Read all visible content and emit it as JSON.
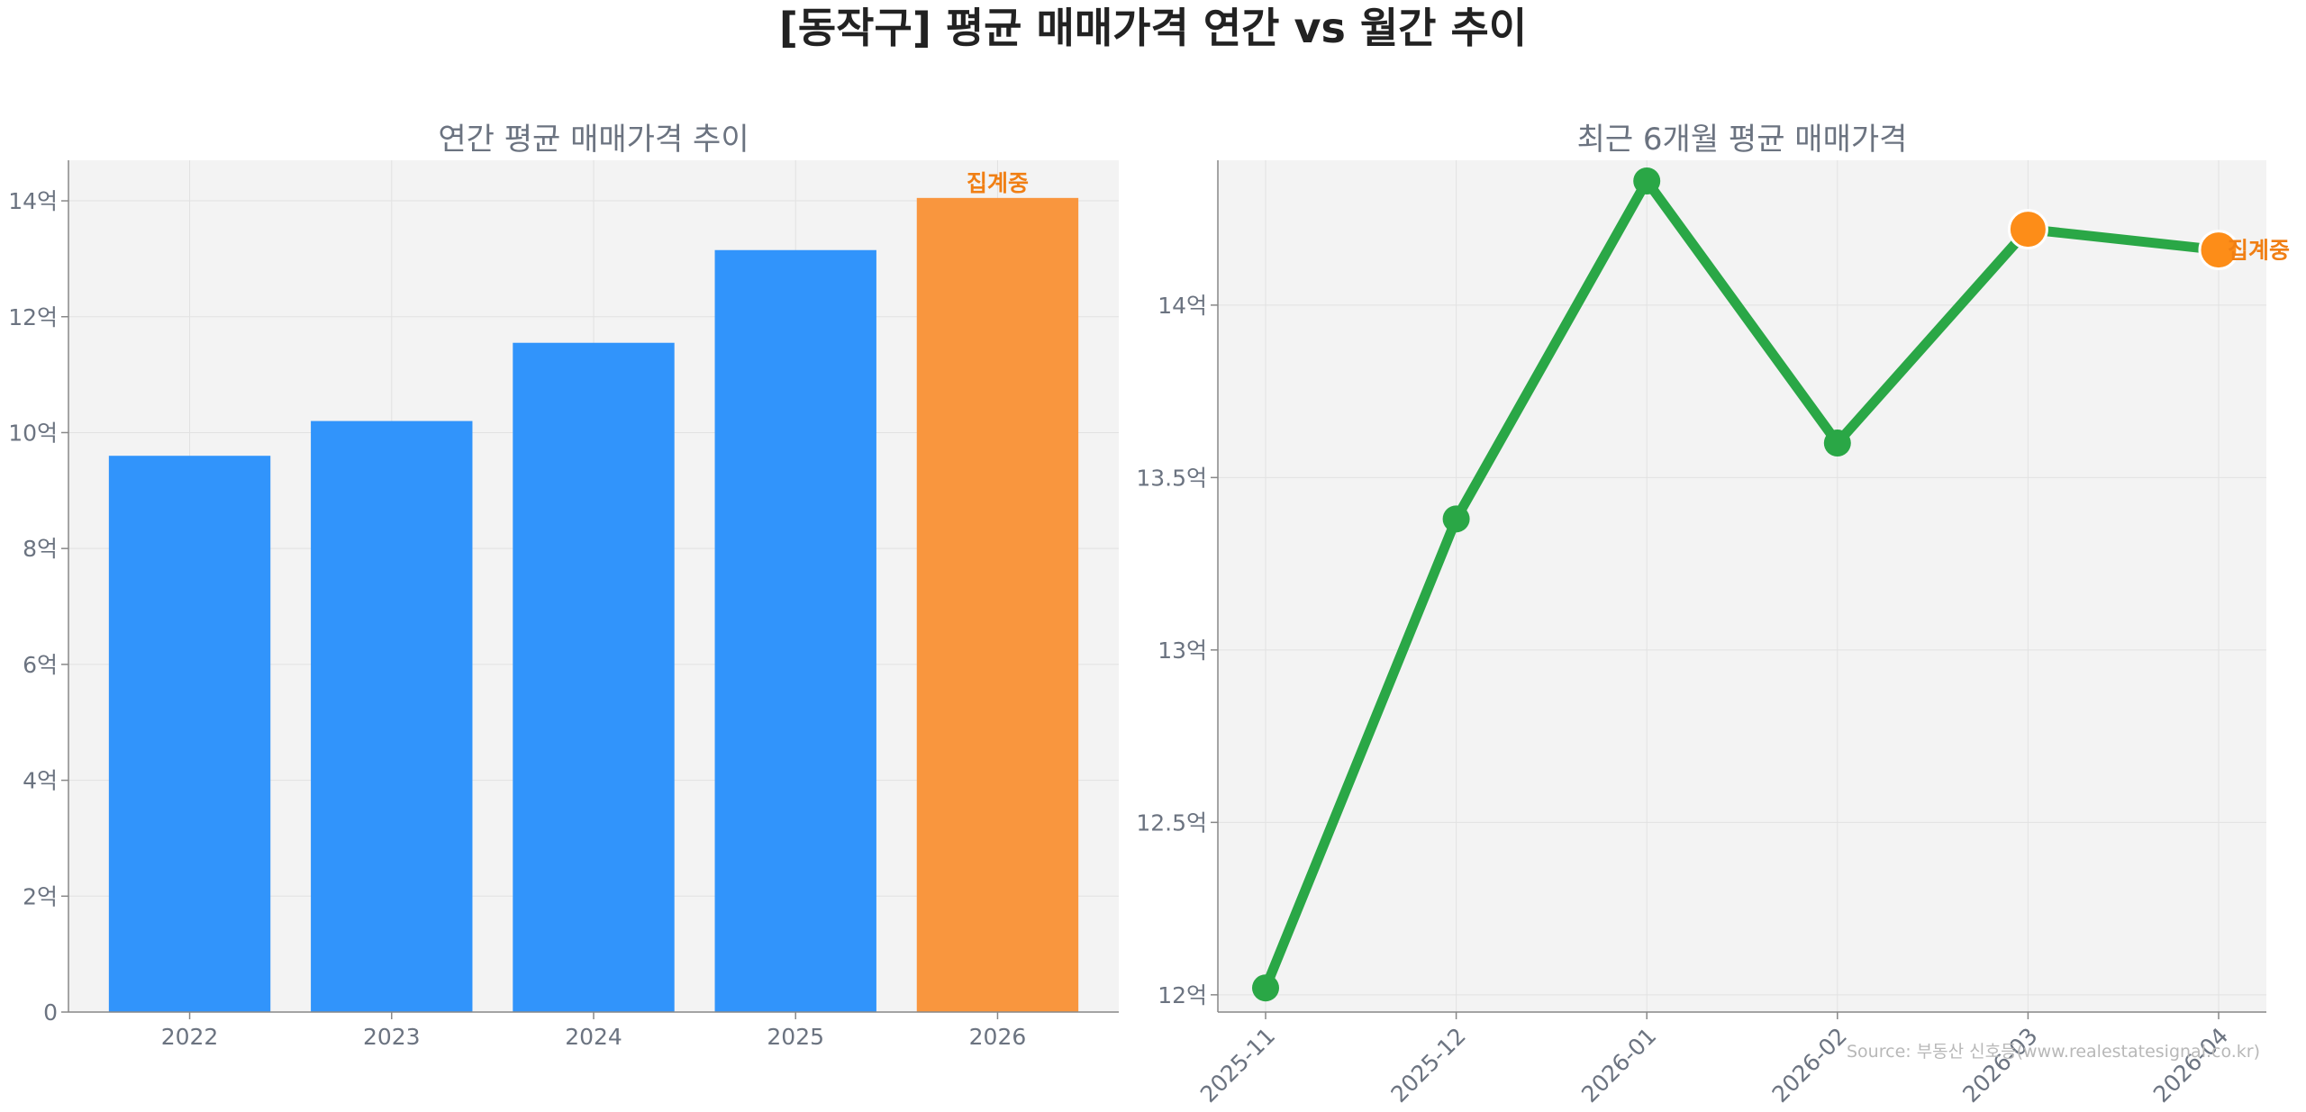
{
  "title": "[동작구] 평균 매매가격 연간 vs 월간 추이",
  "source": "Source: 부동산 신호등(www.realestatesignal.co.kr)",
  "colors": {
    "bar": "#3194fb",
    "bar_highlight": "#f9963e",
    "line": "#2aa746",
    "marker_highlight": "#fd8d18",
    "annotation": "#f07f14",
    "plot_bg": "#f3f3f3",
    "axis_text": "#6b7380"
  },
  "chart_data": [
    {
      "type": "bar",
      "title": "연간 평균 매매가격 추이",
      "categories": [
        "2022",
        "2023",
        "2024",
        "2025",
        "2026"
      ],
      "values": [
        9.6,
        10.2,
        11.55,
        13.15,
        14.05
      ],
      "highlight_index": 4,
      "annotation": "집계중",
      "ylim": [
        0,
        14.7
      ],
      "yticks": [
        0,
        2,
        4,
        6,
        8,
        10,
        12,
        14
      ],
      "ytick_labels": [
        "0",
        "2억",
        "4억",
        "6억",
        "8억",
        "10억",
        "12억",
        "14억"
      ],
      "grid": true
    },
    {
      "type": "line",
      "title": "최근 6개월 평균 매매가격",
      "x": [
        "2025-11",
        "2025-12",
        "2026-01",
        "2026-02",
        "2026-03",
        "2026-04"
      ],
      "values": [
        12.02,
        13.38,
        14.36,
        13.6,
        14.22,
        14.16
      ],
      "highlight_indices": [
        4,
        5
      ],
      "annotation": "집계중",
      "ylim": [
        11.95,
        14.42
      ],
      "yticks": [
        12,
        12.5,
        13,
        13.5,
        14
      ],
      "ytick_labels": [
        "12억",
        "12.5억",
        "13억",
        "13.5억",
        "14억"
      ],
      "grid": true
    }
  ]
}
